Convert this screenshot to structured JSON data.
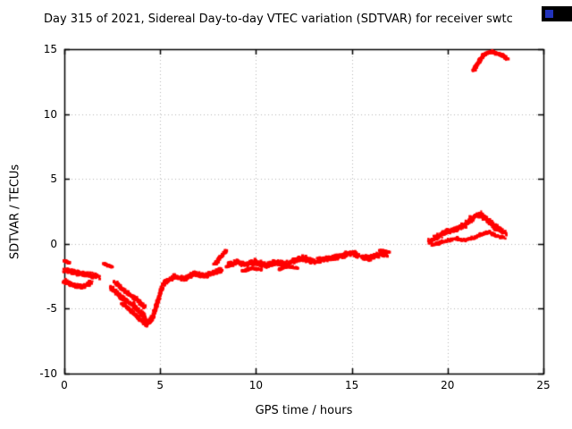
{
  "chart_data": {
    "type": "scatter",
    "title": "Day 315 of 2021, Sidereal Day-to-day VTEC variation (SDTVAR) for receiver swtc",
    "xlabel": "GPS time / hours",
    "ylabel": "SDTVAR / TECUs",
    "xlim": [
      0,
      25
    ],
    "ylim": [
      -10,
      15
    ],
    "xticks": [
      0,
      5,
      10,
      15,
      20,
      25
    ],
    "yticks": [
      -10,
      -5,
      0,
      5,
      10,
      15
    ],
    "grid": true,
    "grid_color": "#b5b5b5",
    "border_color": "#000000",
    "background": "#ffffff",
    "series": [
      {
        "name": "SDTVAR",
        "color": "#ff0000",
        "marker": "square",
        "segments": [
          {
            "path": [
              [
                0.0,
                -2.0
              ],
              [
                0.6,
                -2.2
              ],
              [
                1.2,
                -2.4
              ],
              [
                1.8,
                -2.5
              ]
            ],
            "spread": 0.5,
            "n": 220
          },
          {
            "path": [
              [
                0.0,
                -2.9
              ],
              [
                0.5,
                -3.2
              ],
              [
                1.0,
                -3.3
              ],
              [
                1.4,
                -3.0
              ]
            ],
            "spread": 0.45,
            "n": 200
          },
          {
            "path": [
              [
                0.0,
                -1.3
              ],
              [
                0.3,
                -1.5
              ]
            ],
            "spread": 0.15,
            "n": 40
          },
          {
            "path": [
              [
                2.0,
                -1.5
              ],
              [
                2.5,
                -1.8
              ]
            ],
            "spread": 0.18,
            "n": 50
          },
          {
            "path": [
              [
                2.4,
                -3.3
              ],
              [
                3.0,
                -4.2
              ],
              [
                3.6,
                -4.7
              ],
              [
                4.1,
                -5.5
              ],
              [
                4.35,
                -6.1
              ],
              [
                4.55,
                -5.8
              ]
            ],
            "spread": 0.45,
            "n": 320
          },
          {
            "path": [
              [
                2.6,
                -2.9
              ],
              [
                3.2,
                -3.7
              ],
              [
                3.8,
                -4.3
              ],
              [
                4.2,
                -4.9
              ]
            ],
            "spread": 0.35,
            "n": 180
          },
          {
            "path": [
              [
                3.0,
                -4.6
              ],
              [
                3.5,
                -5.2
              ],
              [
                4.0,
                -5.9
              ],
              [
                4.3,
                -6.3
              ]
            ],
            "spread": 0.3,
            "n": 160
          },
          {
            "path": [
              [
                4.55,
                -5.9
              ],
              [
                4.8,
                -4.8
              ],
              [
                5.05,
                -3.6
              ],
              [
                5.3,
                -2.8
              ]
            ],
            "spread": 0.3,
            "n": 150
          },
          {
            "path": [
              [
                5.3,
                -2.9
              ],
              [
                5.8,
                -2.5
              ],
              [
                6.3,
                -2.7
              ],
              [
                6.8,
                -2.3
              ],
              [
                7.3,
                -2.5
              ],
              [
                7.8,
                -2.2
              ],
              [
                8.2,
                -2.0
              ]
            ],
            "spread": 0.5,
            "n": 340
          },
          {
            "path": [
              [
                7.85,
                -1.6
              ],
              [
                8.15,
                -1.0
              ],
              [
                8.45,
                -0.5
              ]
            ],
            "spread": 0.18,
            "n": 90
          },
          {
            "path": [
              [
                8.5,
                -1.7
              ],
              [
                9.0,
                -1.4
              ],
              [
                9.5,
                -1.6
              ],
              [
                10.0,
                -1.4
              ],
              [
                10.5,
                -1.7
              ],
              [
                11.0,
                -1.4
              ],
              [
                11.5,
                -1.6
              ],
              [
                12.0,
                -1.3
              ],
              [
                12.5,
                -1.1
              ],
              [
                13.0,
                -1.4
              ],
              [
                13.5,
                -1.2
              ],
              [
                14.0,
                -1.1
              ],
              [
                14.5,
                -0.9
              ],
              [
                15.0,
                -0.7
              ],
              [
                15.3,
                -0.9
              ],
              [
                15.8,
                -1.1
              ],
              [
                16.3,
                -0.9
              ],
              [
                16.8,
                -0.8
              ]
            ],
            "spread": 0.55,
            "n": 1000
          },
          {
            "path": [
              [
                9.3,
                -2.1
              ],
              [
                9.8,
                -1.9
              ],
              [
                10.3,
                -2.0
              ]
            ],
            "spread": 0.22,
            "n": 90
          },
          {
            "path": [
              [
                11.2,
                -1.95
              ],
              [
                11.7,
                -1.75
              ],
              [
                12.2,
                -1.9
              ]
            ],
            "spread": 0.2,
            "n": 80
          },
          {
            "path": [
              [
                16.5,
                -0.5
              ],
              [
                16.9,
                -0.65
              ]
            ],
            "spread": 0.13,
            "n": 40
          },
          {
            "path": [
              [
                19.0,
                0.15
              ],
              [
                19.4,
                0.5
              ],
              [
                19.9,
                0.9
              ],
              [
                20.4,
                1.1
              ],
              [
                20.9,
                1.5
              ],
              [
                21.4,
                2.1
              ],
              [
                21.7,
                2.3
              ],
              [
                22.0,
                1.9
              ],
              [
                22.4,
                1.4
              ],
              [
                22.8,
                1.0
              ],
              [
                23.05,
                0.7
              ]
            ],
            "spread": 0.55,
            "n": 520
          },
          {
            "path": [
              [
                19.2,
                -0.1
              ],
              [
                19.8,
                0.2
              ],
              [
                20.4,
                0.4
              ],
              [
                21.0,
                0.3
              ],
              [
                21.6,
                0.6
              ],
              [
                22.1,
                0.9
              ],
              [
                22.6,
                0.6
              ],
              [
                23.0,
                0.45
              ]
            ],
            "spread": 0.3,
            "n": 220
          },
          {
            "path": [
              [
                21.35,
                13.35
              ],
              [
                21.6,
                14.0
              ],
              [
                21.85,
                14.5
              ],
              [
                22.1,
                14.75
              ],
              [
                22.4,
                14.8
              ],
              [
                22.7,
                14.6
              ],
              [
                22.95,
                14.45
              ],
              [
                23.1,
                14.25
              ]
            ],
            "spread": 0.22,
            "n": 260
          }
        ]
      }
    ]
  },
  "corner_badge": {
    "background": "#000000",
    "accent": "#2233bb"
  }
}
